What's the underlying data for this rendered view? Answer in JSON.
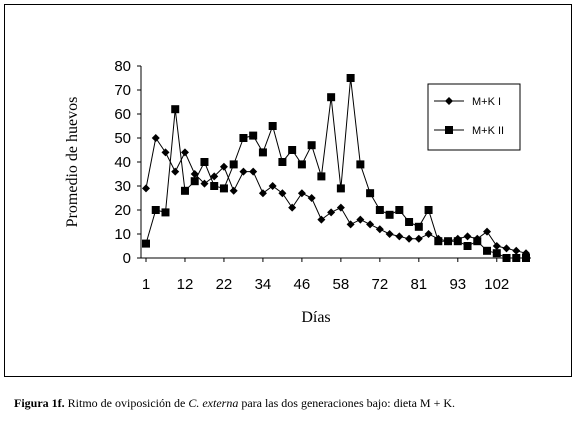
{
  "chart_data": {
    "type": "line",
    "categories": [
      "1",
      null,
      null,
      null,
      "12",
      null,
      null,
      null,
      "22",
      null,
      null,
      null,
      "34",
      null,
      null,
      null,
      "46",
      null,
      null,
      null,
      "58",
      null,
      null,
      null,
      "72",
      null,
      null,
      null,
      "81",
      null,
      null,
      null,
      "93",
      null,
      null,
      null,
      "102",
      null,
      null,
      null
    ],
    "series": [
      {
        "name": "M+K I",
        "color": "#000000",
        "marker": "diamond",
        "values": [
          29,
          50,
          44,
          36,
          44,
          35,
          31,
          34,
          38,
          28,
          36,
          36,
          27,
          30,
          27,
          21,
          27,
          25,
          16,
          19,
          21,
          14,
          16,
          14,
          12,
          10,
          9,
          8,
          8,
          10,
          8,
          7,
          8,
          9,
          8,
          11,
          5,
          4,
          3,
          2
        ]
      },
      {
        "name": "M+K II",
        "color": "#000000",
        "marker": "square",
        "values": [
          6,
          20,
          19,
          62,
          28,
          32,
          40,
          30,
          29,
          39,
          50,
          51,
          44,
          55,
          40,
          45,
          39,
          47,
          34,
          67,
          29,
          75,
          39,
          27,
          20,
          18,
          20,
          15,
          13,
          20,
          7,
          7,
          7,
          5,
          7,
          3,
          2,
          0,
          0,
          0
        ]
      }
    ],
    "x_label": "Días",
    "y_label": "Promedio de huevos",
    "ylim": [
      0,
      80
    ],
    "yticks": [
      0,
      10,
      20,
      30,
      40,
      50,
      60,
      70,
      80
    ],
    "legend": "top-right"
  },
  "caption": {
    "label": "Figura 1f.",
    "text_before": " Ritmo de oviposición de ",
    "species": "C. externa",
    "text_after": " para las dos generaciones bajo: dieta M + K."
  }
}
